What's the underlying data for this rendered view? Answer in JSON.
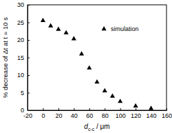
{
  "chart_data": {
    "type": "scatter",
    "x_label": [
      "d",
      "c-c",
      " / μm"
    ],
    "y_label": "% decrease of Δt at t = 10 s",
    "series": [
      {
        "name": "simulation",
        "color": "#000000",
        "marker": "triangle",
        "x": [
          0,
          10,
          20,
          30,
          40,
          50,
          60,
          70,
          80,
          90,
          100,
          120,
          140
        ],
        "values": [
          25.5,
          24,
          23,
          22,
          20.3,
          16,
          12,
          8,
          5.5,
          4,
          2.5,
          1.2,
          0.5
        ]
      }
    ],
    "xlim": [
      -20,
      160
    ],
    "xticks": [
      -20,
      0,
      20,
      40,
      60,
      80,
      100,
      120,
      140,
      160
    ],
    "ylim": [
      0,
      30
    ],
    "yticks": [
      0,
      5,
      10,
      15,
      20,
      25,
      30
    ],
    "legend": "upper right",
    "grid": false
  }
}
